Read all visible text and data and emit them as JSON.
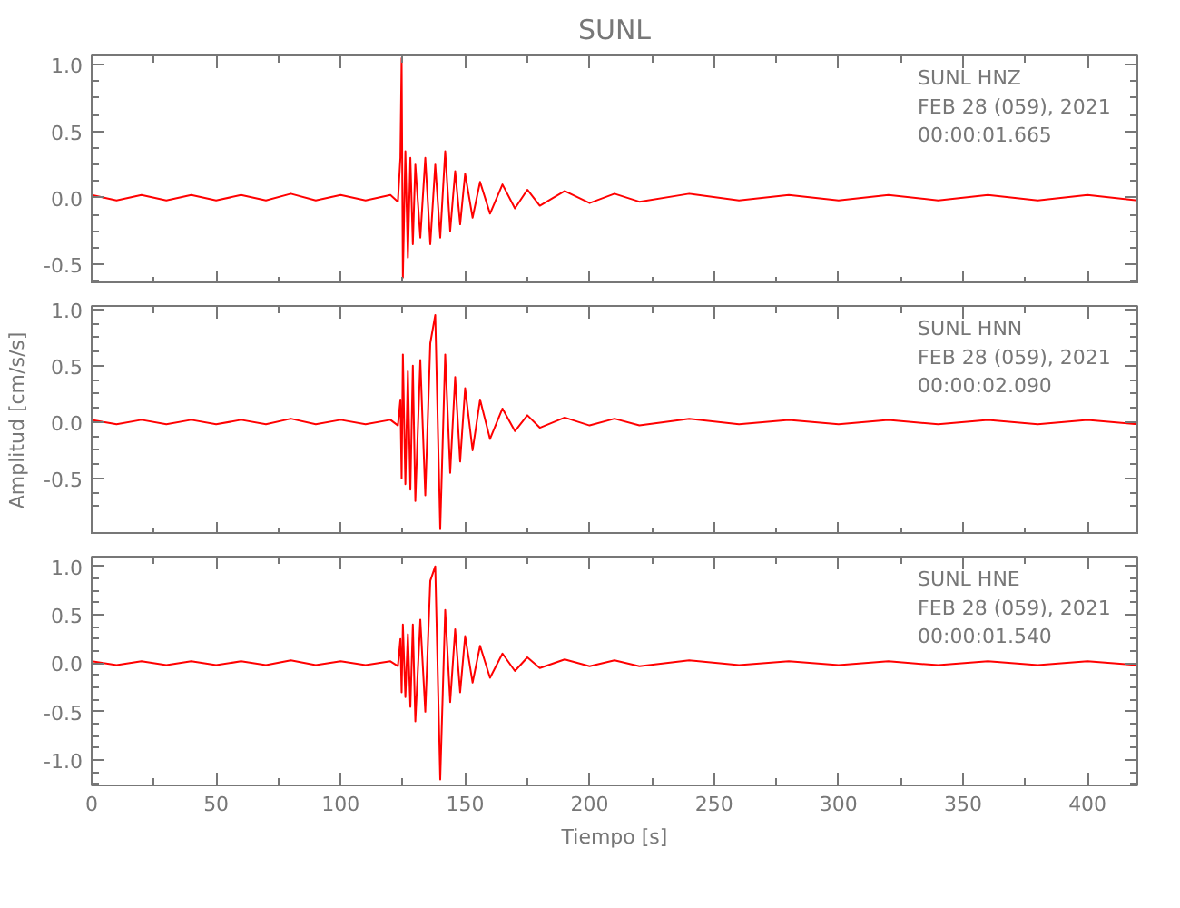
{
  "chart_data": [
    {
      "type": "line",
      "title": "SUNL",
      "color": "#ff0000",
      "tick_labels": "y",
      "line_style": "solid",
      "annotations": [
        "SUNL   HNZ",
        "FEB 28 (059), 2021",
        "00:00:01.665"
      ],
      "x": [
        0,
        10,
        20,
        30,
        40,
        50,
        60,
        70,
        80,
        90,
        100,
        110,
        120,
        123,
        124,
        124.5,
        125,
        126,
        127,
        128,
        129,
        130,
        132,
        134,
        136,
        138,
        140,
        142,
        144,
        146,
        148,
        150,
        153,
        156,
        160,
        165,
        170,
        175,
        180,
        190,
        200,
        210,
        220,
        240,
        260,
        280,
        300,
        320,
        340,
        360,
        380,
        400,
        420
      ],
      "values": [
        0.02,
        -0.02,
        0.02,
        -0.02,
        0.02,
        -0.02,
        0.02,
        -0.02,
        0.03,
        -0.02,
        0.02,
        -0.02,
        0.02,
        -0.03,
        0.3,
        1.05,
        -0.6,
        0.35,
        -0.45,
        0.3,
        -0.35,
        0.25,
        -0.3,
        0.3,
        -0.35,
        0.25,
        -0.3,
        0.35,
        -0.25,
        0.2,
        -0.2,
        0.18,
        -0.15,
        0.12,
        -0.12,
        0.1,
        -0.08,
        0.06,
        -0.06,
        0.05,
        -0.04,
        0.03,
        -0.03,
        0.03,
        -0.02,
        0.02,
        -0.02,
        0.02,
        -0.02,
        0.02,
        -0.02,
        0.02,
        -0.02
      ],
      "xlim": [
        0,
        420
      ],
      "xticks": [
        0,
        50,
        100,
        150,
        200,
        250,
        300,
        350,
        400
      ],
      "ylim": [
        -0.65,
        1.07
      ],
      "yticks": [
        {
          "value": -0.5,
          "label": "-0.5"
        },
        {
          "value": 0,
          "label": "0.0"
        },
        {
          "value": 0.5,
          "label": "0.5"
        },
        {
          "value": 1,
          "label": "1.0"
        }
      ]
    },
    {
      "type": "line",
      "ylabel": "Amplitud [cm/s/s]",
      "color": "#ff0000",
      "tick_labels": "y",
      "line_style": "solid",
      "annotations": [
        "SUNL   HNN",
        "FEB 28 (059), 2021",
        "00:00:02.090"
      ],
      "x": [
        0,
        10,
        20,
        30,
        40,
        50,
        60,
        70,
        80,
        90,
        100,
        110,
        120,
        123,
        124,
        124.5,
        125,
        126,
        127,
        128,
        129,
        130,
        132,
        134,
        136,
        138,
        140,
        142,
        144,
        146,
        148,
        150,
        153,
        156,
        160,
        165,
        170,
        175,
        180,
        190,
        200,
        210,
        220,
        240,
        260,
        280,
        300,
        320,
        340,
        360,
        380,
        400,
        420
      ],
      "values": [
        0.02,
        -0.02,
        0.02,
        -0.02,
        0.02,
        -0.02,
        0.02,
        -0.02,
        0.03,
        -0.02,
        0.02,
        -0.02,
        0.02,
        -0.03,
        0.2,
        -0.5,
        0.6,
        -0.55,
        0.45,
        -0.6,
        0.5,
        -0.7,
        0.55,
        -0.65,
        0.7,
        0.95,
        -0.95,
        0.6,
        -0.45,
        0.4,
        -0.35,
        0.3,
        -0.25,
        0.2,
        -0.15,
        0.12,
        -0.08,
        0.06,
        -0.05,
        0.04,
        -0.03,
        0.03,
        -0.03,
        0.03,
        -0.02,
        0.02,
        -0.02,
        0.02,
        -0.02,
        0.02,
        -0.02,
        0.02,
        -0.02
      ],
      "xlim": [
        0,
        420
      ],
      "xticks": [
        0,
        50,
        100,
        150,
        200,
        250,
        300,
        350,
        400
      ],
      "ylim": [
        -1.0,
        1.03
      ],
      "yticks": [
        {
          "value": -0.5,
          "label": "-0.5"
        },
        {
          "value": 0,
          "label": "0.0"
        },
        {
          "value": 0.5,
          "label": "0.5"
        },
        {
          "value": 1,
          "label": "1.0"
        }
      ]
    },
    {
      "type": "line",
      "xlabel": "Tiempo [s]",
      "color": "#ff0000",
      "line_style": "solid",
      "annotations": [
        "SUNL   HNE",
        "FEB 28 (059), 2021",
        "00:00:01.540"
      ],
      "x": [
        0,
        10,
        20,
        30,
        40,
        50,
        60,
        70,
        80,
        90,
        100,
        110,
        120,
        123,
        124,
        124.5,
        125,
        126,
        127,
        128,
        129,
        130,
        132,
        134,
        136,
        138,
        140,
        142,
        144,
        146,
        148,
        150,
        153,
        156,
        160,
        165,
        170,
        175,
        180,
        190,
        200,
        210,
        220,
        240,
        260,
        280,
        300,
        320,
        340,
        360,
        380,
        400,
        420
      ],
      "values": [
        0.02,
        -0.02,
        0.02,
        -0.02,
        0.02,
        -0.02,
        0.02,
        -0.02,
        0.03,
        -0.02,
        0.02,
        -0.02,
        0.02,
        -0.03,
        0.25,
        -0.3,
        0.4,
        -0.35,
        0.3,
        -0.45,
        0.4,
        -0.6,
        0.45,
        -0.5,
        0.85,
        1.0,
        -1.2,
        0.55,
        -0.4,
        0.35,
        -0.3,
        0.28,
        -0.2,
        0.18,
        -0.15,
        0.1,
        -0.08,
        0.06,
        -0.05,
        0.04,
        -0.03,
        0.03,
        -0.03,
        0.03,
        -0.02,
        0.02,
        -0.02,
        0.02,
        -0.02,
        0.02,
        -0.02,
        0.02,
        -0.02
      ],
      "xlim": [
        0,
        420
      ],
      "xticks": [
        0,
        50,
        100,
        150,
        200,
        250,
        300,
        350,
        400
      ],
      "ylim": [
        -1.26,
        1.1
      ],
      "yticks": [
        {
          "value": -1,
          "label": "-1.0"
        },
        {
          "value": -0.5,
          "label": "-0.5"
        },
        {
          "value": 0,
          "label": "0.0"
        },
        {
          "value": 0.5,
          "label": "0.5"
        },
        {
          "value": 1,
          "label": "1.0"
        }
      ]
    }
  ]
}
